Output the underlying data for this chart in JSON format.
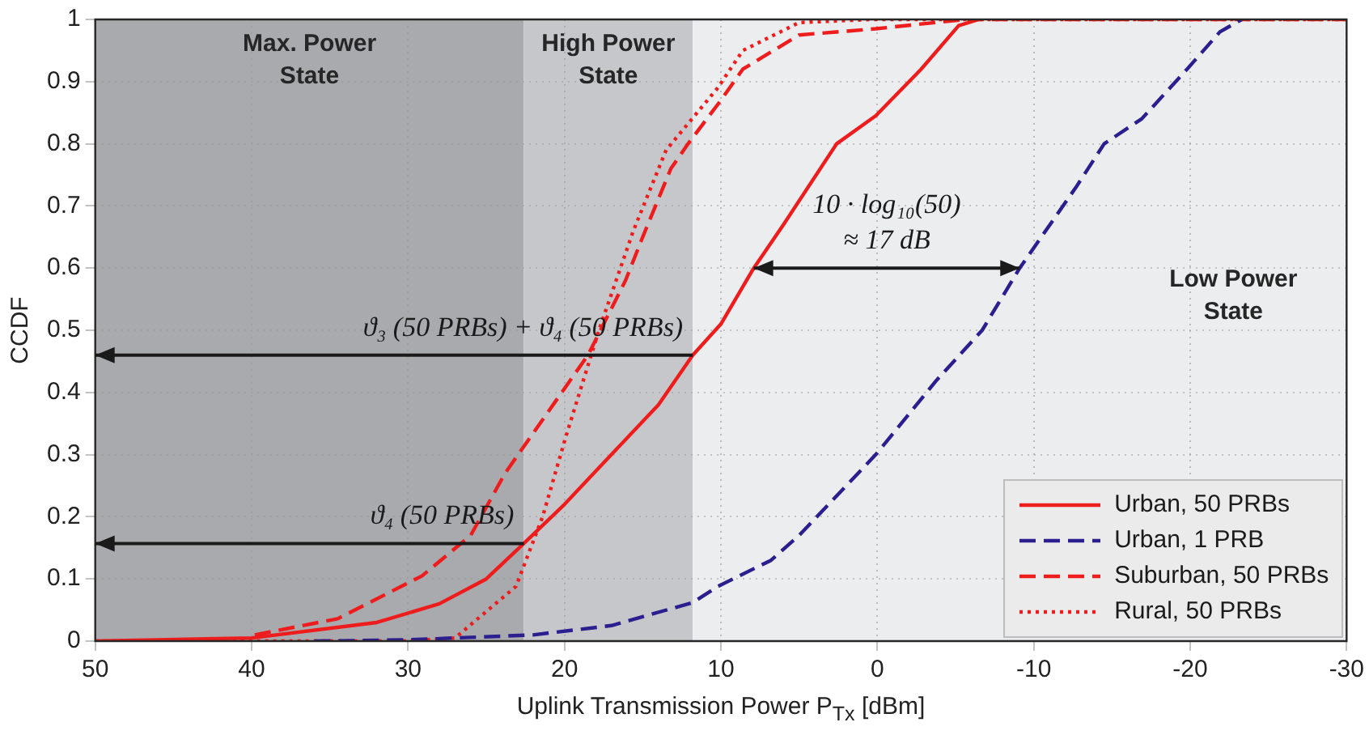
{
  "chart_data": {
    "type": "line",
    "xlabel": "Uplink Transmission Power P$_{Tx}$ [dBm]",
    "ylabel": "CCDF",
    "xlim": [
      50,
      -30
    ],
    "xticks": [
      50,
      40,
      30,
      20,
      10,
      0,
      -10,
      -20,
      -30
    ],
    "ylim": [
      0,
      1
    ],
    "yticks": [
      0,
      0.1,
      0.2,
      0.3,
      0.4,
      0.5,
      0.6,
      0.7,
      0.8,
      0.9,
      1
    ],
    "grid": true,
    "legend": "bottom right",
    "marker": "none",
    "bands": [
      {
        "axis": "x",
        "from": 50,
        "to": 22.6,
        "label": "Max. Power State",
        "color": "#a9aaad"
      },
      {
        "axis": "x",
        "from": 22.6,
        "to": 11.8,
        "label": "High Power State",
        "color": "#c6c7ca"
      },
      {
        "axis": "x",
        "from": 11.8,
        "to": -30,
        "label": "Low Power State",
        "color": "#ecedef"
      }
    ],
    "annotations": [
      {
        "text": "ϑ₃ (50 PRBs) + ϑ₄ (50 PRBs)",
        "x": 11.8,
        "y": 0.46
      },
      {
        "text": "ϑ₄ (50 PRBs)",
        "x": 22.6,
        "y": 0.157
      },
      {
        "text": "10 · log₁₀(50)\n≈ 17 dB",
        "x": 7.9,
        "y": 0.6
      }
    ],
    "series": [
      {
        "name": "Urban, 50 PRBs",
        "color": "#ee1c1c",
        "line_style": "solid",
        "x": [
          50,
          40,
          32,
          28,
          25,
          22.6,
          20,
          17,
          14,
          11.8,
          10,
          7.9,
          6,
          2.6,
          0.1,
          -2.8,
          -5.2,
          -6.5
        ],
        "values": [
          0,
          0.005,
          0.03,
          0.06,
          0.1,
          0.157,
          0.22,
          0.3,
          0.38,
          0.46,
          0.51,
          0.6,
          0.67,
          0.8,
          0.845,
          0.92,
          0.99,
          1
        ]
      },
      {
        "name": "Urban, 1 PRB",
        "color": "#2b1f8f",
        "line_style": "dashed",
        "x": [
          36,
          30,
          22,
          17,
          11.8,
          10.2,
          6.8,
          5,
          0.1,
          -3.8,
          -6.7,
          -9.1,
          -12.7,
          -14.5,
          -16.9,
          -19.8,
          -21.9,
          -23.3
        ],
        "values": [
          0,
          0.002,
          0.01,
          0.025,
          0.062,
          0.088,
          0.13,
          0.17,
          0.3,
          0.42,
          0.5,
          0.6,
          0.73,
          0.8,
          0.84,
          0.92,
          0.98,
          1
        ]
      },
      {
        "name": "Suburban, 50 PRBs",
        "color": "#ee1c1c",
        "line_style": "dashed",
        "x": [
          39.8,
          34.5,
          29.1,
          26,
          23.8,
          18.5,
          16.1,
          15,
          13.2,
          12.1,
          10,
          8.6,
          5,
          0.1,
          -5.6,
          -30
        ],
        "values": [
          0.01,
          0.036,
          0.105,
          0.17,
          0.27,
          0.46,
          0.58,
          0.65,
          0.76,
          0.8,
          0.87,
          0.92,
          0.975,
          0.985,
          1,
          1
        ]
      },
      {
        "name": "Rural, 50 PRBs",
        "color": "#ee1c1c",
        "line_style": "dotted",
        "x": [
          50,
          30,
          27,
          23.1,
          21.4,
          19.9,
          17.8,
          15.6,
          13.5,
          10.2,
          8.6,
          5,
          0.4,
          -30
        ],
        "values": [
          0,
          0,
          0.005,
          0.088,
          0.2,
          0.33,
          0.5,
          0.66,
          0.79,
          0.89,
          0.95,
          0.995,
          1,
          1
        ]
      }
    ]
  }
}
